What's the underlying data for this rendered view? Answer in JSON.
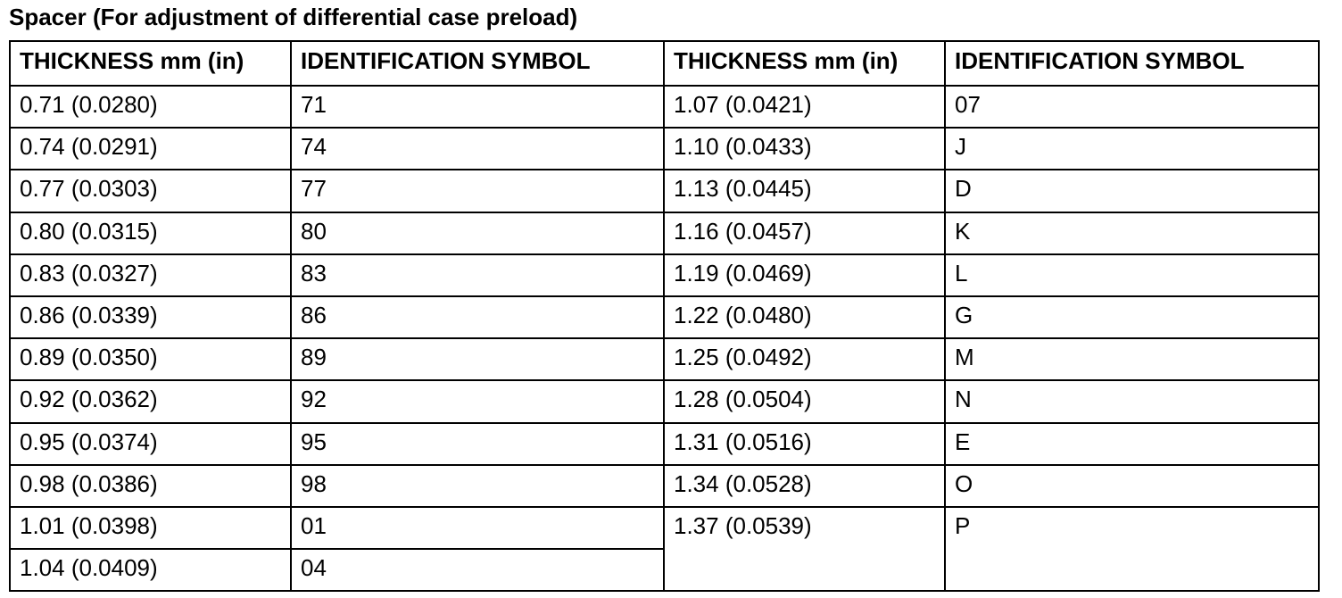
{
  "header": {
    "title": "Spacer (For adjustment of differential case preload)"
  },
  "table": {
    "headers": [
      "THICKNESS mm (in)",
      "IDENTIFICATION SYMBOL",
      "THICKNESS mm (in)",
      "IDENTIFICATION SYMBOL"
    ],
    "left_rows": [
      [
        "0.71 (0.0280)",
        "71"
      ],
      [
        "0.74 (0.0291)",
        "74"
      ],
      [
        "0.77 (0.0303)",
        "77"
      ],
      [
        "0.80 (0.0315)",
        "80"
      ],
      [
        "0.83 (0.0327)",
        "83"
      ],
      [
        "0.86 (0.0339)",
        "86"
      ],
      [
        "0.89 (0.0350)",
        "89"
      ],
      [
        "0.92 (0.0362)",
        "92"
      ],
      [
        "0.95 (0.0374)",
        "95"
      ],
      [
        "0.98 (0.0386)",
        "98"
      ],
      [
        "1.01 (0.0398)",
        "01"
      ],
      [
        "1.04 (0.0409)",
        "04"
      ]
    ],
    "right_rows": [
      [
        "1.07 (0.0421)",
        "07"
      ],
      [
        "1.10 (0.0433)",
        "J"
      ],
      [
        "1.13 (0.0445)",
        "D"
      ],
      [
        "1.16 (0.0457)",
        "K"
      ],
      [
        "1.19 (0.0469)",
        "L"
      ],
      [
        "1.22 (0.0480)",
        "G"
      ],
      [
        "1.25 (0.0492)",
        "M"
      ],
      [
        "1.28 (0.0504)",
        "N"
      ],
      [
        "1.31 (0.0516)",
        "E"
      ],
      [
        "1.34 (0.0528)",
        "O"
      ],
      [
        "1.37 (0.0539)",
        "P"
      ]
    ]
  }
}
